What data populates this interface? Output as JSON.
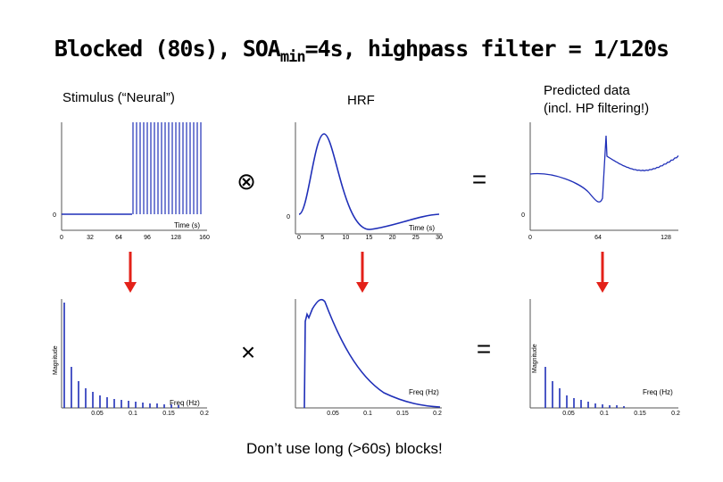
{
  "title": {
    "pre": "Blocked (80s), SOA",
    "sub": "min",
    "post": "=4s, highpass filter = 1/120s"
  },
  "labels": {
    "stimulus": "Stimulus (“Neural”)",
    "hrf": "HRF",
    "predicted_line1": "Predicted data",
    "predicted_line2": "(incl. HP filtering!)"
  },
  "operators": {
    "convolve": "⊗",
    "equals": "=",
    "times": "×"
  },
  "footer": "Don’t use long (>60s) blocks!",
  "colors": {
    "plot": "#1f2fb8",
    "arrow": "#e32119",
    "axis": "#555555"
  },
  "panels": {
    "stimulus_time": {
      "axis_label": "Time (s)",
      "ticks": [
        "0",
        "32",
        "64",
        "96",
        "128",
        "160"
      ],
      "y_tick": "0"
    },
    "hrf_time": {
      "axis_label": "Time (s)",
      "ticks": [
        "0",
        "5",
        "10",
        "15",
        "20",
        "25",
        "30"
      ],
      "y_tick": "0"
    },
    "predicted_time": {
      "ticks": [
        "0",
        "64",
        "128"
      ],
      "y_tick": "0"
    },
    "stimulus_freq": {
      "axis_label": "Freq (Hz)",
      "y_label": "Magnitude",
      "ticks": [
        "0.05",
        "0.1",
        "0.15",
        "0.2"
      ]
    },
    "hrf_freq": {
      "axis_label": "Freq (Hz)",
      "ticks": [
        "0.05",
        "0.1",
        "0.15",
        "0.2"
      ]
    },
    "predicted_freq": {
      "axis_label": "Freq (Hz)",
      "y_label": "Magnitude",
      "ticks": [
        "0.05",
        "0.1",
        "0.15",
        "0.2"
      ]
    }
  }
}
